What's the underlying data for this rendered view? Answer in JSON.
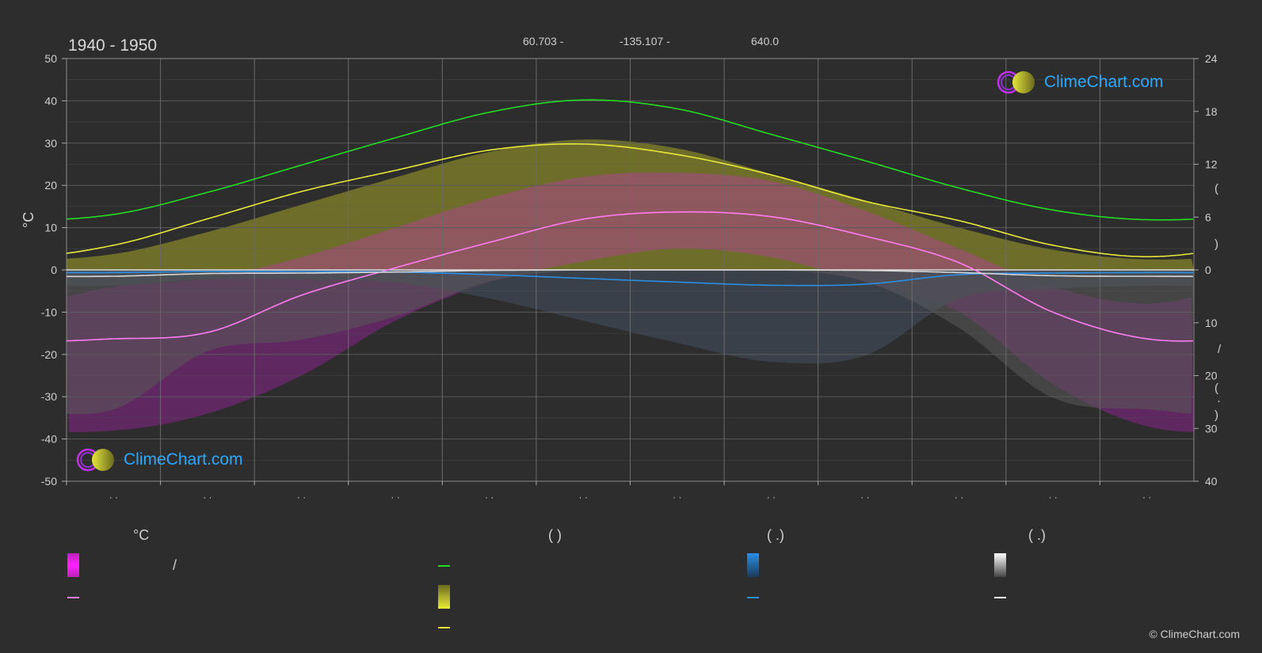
{
  "header": {
    "period": "1940 - 1950",
    "lat": "60.703 -",
    "lon": "-135.107 -",
    "elevation": "640.0"
  },
  "unit_left": "°C",
  "right_axis_marks": [
    "(",
    ")",
    "/",
    "(",
    "·",
    ")"
  ],
  "logo_text": "ClimeChart.com",
  "copyright": "© ClimeChart.com",
  "month_ticks": [
    "· ·",
    "· ·",
    "· ·",
    "· ·",
    "· ·",
    "· ·",
    "· ·",
    "· ·",
    "· ·",
    "· ·",
    "· ·",
    "· ·"
  ],
  "legend": {
    "col1_header": "°C",
    "col2_header": "(          )",
    "col3_header": "(   .)",
    "col4_header": "(   .)",
    "slash": "/"
  },
  "colors": {
    "background": "#2d2d2d",
    "daylight": "#22dd22",
    "sunshine": "#e8e83a",
    "temp_mean": "#ff7cf0",
    "temp_band": "#e61be6",
    "precip": "#2a8fe6",
    "snow": "#d8d8d8",
    "grid": "#5a5a5a",
    "logo": "#2ea8ff"
  },
  "chart_data": {
    "type": "line",
    "x_unit": "month",
    "x": [
      1,
      2,
      3,
      4,
      5,
      6,
      7,
      8,
      9,
      10,
      11,
      12
    ],
    "ylim_left": [
      -50,
      50
    ],
    "yticks_left": [
      50,
      40,
      30,
      20,
      10,
      0,
      -10,
      -20,
      -30,
      -40,
      -50
    ],
    "ylim_right_top": [
      0,
      24
    ],
    "yticks_right_top": [
      24,
      18,
      12,
      6,
      0
    ],
    "ylim_right_bottom": [
      0,
      40
    ],
    "yticks_right_bottom": [
      0,
      10,
      20,
      30,
      40
    ],
    "series": [
      {
        "key": "daylight_hours",
        "axis": "right_top",
        "values": [
          6.3,
          8.8,
          11.9,
          15.0,
          17.9,
          19.3,
          18.3,
          15.4,
          12.4,
          9.3,
          6.8,
          5.7
        ]
      },
      {
        "key": "sunshine_hours",
        "axis": "right_top",
        "values": [
          2.8,
          5.8,
          8.9,
          11.3,
          13.6,
          14.3,
          13.1,
          10.8,
          7.8,
          5.6,
          2.8,
          1.5
        ]
      },
      {
        "key": "temp_mean",
        "axis": "left",
        "values": [
          -16.3,
          -14.8,
          -6.0,
          0.5,
          6.5,
          12.0,
          13.7,
          12.6,
          8.0,
          1.7,
          -10.0,
          -16.3
        ]
      },
      {
        "key": "precip_mm",
        "axis": "right_bottom",
        "values": [
          0.5,
          0.3,
          0.3,
          0.4,
          0.9,
          1.6,
          2.3,
          2.9,
          2.7,
          0.9,
          0.6,
          0.5
        ]
      },
      {
        "key": "snow_mm",
        "axis": "right_bottom",
        "values": [
          1.2,
          0.7,
          0.6,
          0.4,
          0.1,
          0.0,
          0.0,
          0.0,
          0.1,
          0.5,
          1.1,
          1.2
        ]
      }
    ],
    "temp_band": {
      "axis": "left",
      "max": [
        -4,
        -2,
        3,
        10,
        17,
        22,
        23,
        21,
        14,
        5,
        -4,
        -8
      ],
      "min": [
        -38,
        -34,
        -25,
        -12,
        -3,
        2,
        5,
        3,
        -3,
        -10,
        -27,
        -37
      ]
    },
    "sunshine_band_axis": "right_top",
    "grid": true
  }
}
